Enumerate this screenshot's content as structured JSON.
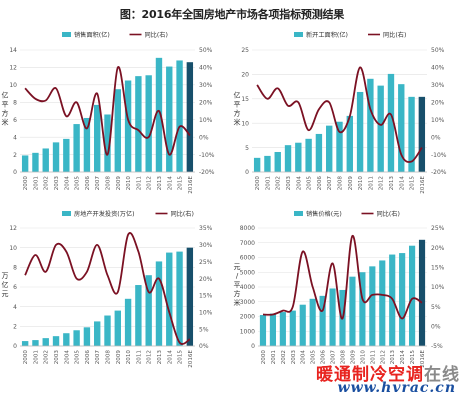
{
  "title": "图：2016年全国房地产市场各项指标预测结果",
  "watermark": {
    "part1": "暖通制冷空调",
    "part2": "在线",
    "url": "www.hvrac.cn"
  },
  "colors": {
    "bar": "#3ab6c6",
    "bar_last": "#174f6b",
    "line": "#7b1123",
    "grid": "#e2e2e2",
    "axis_text": "#555555"
  },
  "chart_data": [
    {
      "type": "bar",
      "legend": [
        "销售面积(亿)",
        "同比(右)"
      ],
      "legend_position": "top",
      "categories": [
        "2000",
        "2001",
        "2002",
        "2003",
        "2004",
        "2005",
        "2006",
        "2007",
        "2008",
        "2009",
        "2010",
        "2011",
        "2012",
        "2013",
        "2014",
        "2015",
        "2016E"
      ],
      "ylabel": "亿平方米",
      "ylim": [
        0,
        14
      ],
      "yticks": [
        0,
        2,
        4,
        6,
        8,
        10,
        12,
        14
      ],
      "y2lim": [
        -20,
        50
      ],
      "y2ticks": [
        "-20%",
        "-10%",
        "0%",
        "10%",
        "20%",
        "30%",
        "40%",
        "50%"
      ],
      "series": [
        {
          "name": "销售面积(亿)",
          "type": "bar",
          "axis": "left",
          "values": [
            1.9,
            2.2,
            2.7,
            3.4,
            3.8,
            5.5,
            6.2,
            7.7,
            6.6,
            9.5,
            10.5,
            11.0,
            11.1,
            13.1,
            12.1,
            12.8,
            12.6
          ]
        },
        {
          "name": "同比(右)",
          "type": "line",
          "axis": "right",
          "values": [
            28,
            22,
            21,
            28,
            12,
            20,
            5,
            25,
            -10,
            40,
            10,
            4,
            0,
            15,
            -10,
            6,
            1
          ]
        }
      ]
    },
    {
      "type": "bar",
      "legend": [
        "新开工面积(亿)",
        "同比(右)"
      ],
      "legend_position": "top",
      "categories": [
        "2000",
        "2001",
        "2002",
        "2003",
        "2004",
        "2005",
        "2006",
        "2007",
        "2008",
        "2009",
        "2010",
        "2011",
        "2012",
        "2013",
        "2014",
        "2015",
        "2016E"
      ],
      "ylabel": "亿平方米",
      "ylim": [
        0,
        25
      ],
      "yticks": [
        0,
        5,
        10,
        15,
        20,
        25
      ],
      "y2lim": [
        -20,
        50
      ],
      "y2ticks": [
        "-20%",
        "-10%",
        "0%",
        "10%",
        "20%",
        "30%",
        "40%",
        "50%"
      ],
      "series": [
        {
          "name": "新开工面积(亿)",
          "type": "bar",
          "axis": "left",
          "values": [
            2.9,
            3.3,
            4.1,
            5.5,
            6.0,
            6.8,
            7.8,
            9.5,
            10.3,
            11.5,
            16.4,
            19.1,
            17.7,
            20.1,
            18.0,
            15.4,
            15.4
          ]
        },
        {
          "name": "同比(右)",
          "type": "line",
          "axis": "right",
          "values": [
            30,
            22,
            28,
            18,
            20,
            4,
            16,
            20,
            3,
            12,
            40,
            16,
            7,
            13,
            -10,
            -14,
            -6
          ]
        }
      ]
    },
    {
      "type": "bar",
      "legend": [
        "房地产开发投资(万亿)",
        "同比(右)"
      ],
      "legend_position": "top",
      "categories": [
        "2000",
        "2001",
        "2002",
        "2003",
        "2004",
        "2005",
        "2006",
        "2007",
        "2008",
        "2009",
        "2010",
        "2011",
        "2012",
        "2013",
        "2014",
        "2015",
        "2016E"
      ],
      "ylabel": "万亿元",
      "ylim": [
        0,
        12
      ],
      "yticks": [
        0,
        2,
        4,
        6,
        8,
        10,
        12
      ],
      "y2lim": [
        0,
        35
      ],
      "y2ticks": [
        "0%",
        "5%",
        "10%",
        "15%",
        "20%",
        "25%",
        "30%",
        "35%"
      ],
      "series": [
        {
          "name": "房地产开发投资(万亿)",
          "type": "bar",
          "axis": "left",
          "values": [
            0.5,
            0.6,
            0.8,
            1.0,
            1.3,
            1.6,
            1.9,
            2.5,
            3.1,
            3.6,
            4.8,
            6.2,
            7.2,
            8.6,
            9.5,
            9.6,
            10.0
          ]
        },
        {
          "name": "同比(右)",
          "type": "line",
          "axis": "right",
          "values": [
            21,
            27,
            22,
            30,
            28,
            20,
            22,
            30,
            21,
            16,
            33,
            28,
            16,
            20,
            10,
            1,
            2
          ]
        }
      ]
    },
    {
      "type": "bar",
      "legend": [
        "销售价格(元)",
        "同比(右)"
      ],
      "legend_position": "top",
      "categories": [
        "2000",
        "2001",
        "2002",
        "2003",
        "2004",
        "2005",
        "2006",
        "2007",
        "2008",
        "2009",
        "2010",
        "2011",
        "2012",
        "2013",
        "2014",
        "2015",
        "2016E"
      ],
      "ylabel": "元/平方米",
      "ylim": [
        0,
        8000
      ],
      "yticks": [
        0,
        1000,
        2000,
        3000,
        4000,
        5000,
        6000,
        7000,
        8000
      ],
      "y2lim": [
        -5,
        25
      ],
      "y2ticks": [
        "-5%",
        "0%",
        "5%",
        "10%",
        "15%",
        "20%",
        "25%"
      ],
      "series": [
        {
          "name": "销售价格(元)",
          "type": "bar",
          "axis": "left",
          "values": [
            2100,
            2200,
            2300,
            2400,
            2800,
            3200,
            3400,
            3900,
            3800,
            4700,
            5000,
            5400,
            5800,
            6200,
            6300,
            6800,
            7200
          ]
        },
        {
          "name": "同比(右)",
          "type": "line",
          "axis": "right",
          "values": [
            3,
            3,
            4,
            5,
            19,
            10,
            4,
            16,
            2,
            23,
            7,
            8,
            8,
            7,
            2,
            7,
            6
          ]
        }
      ]
    }
  ]
}
